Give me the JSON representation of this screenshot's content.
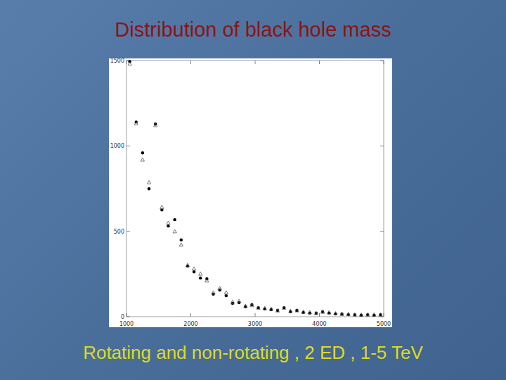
{
  "chart_data": {
    "type": "scatter",
    "title": "Distribution of black hole mass",
    "subtitle": "Rotating and non-rotating , 2 ED , 1-5 TeV",
    "x": [
      1050,
      1150,
      1250,
      1350,
      1450,
      1550,
      1650,
      1750,
      1850,
      1950,
      2050,
      2150,
      2250,
      2350,
      2450,
      2550,
      2650,
      2750,
      2850,
      2950,
      3050,
      3150,
      3250,
      3350,
      3450,
      3550,
      3650,
      3750,
      3850,
      3950,
      4050,
      4150,
      4250,
      4350,
      4450,
      4550,
      4650,
      4750,
      4850,
      4950
    ],
    "series": [
      {
        "color": "#000000",
        "marker": "circle",
        "values": [
          1494,
          1140,
          959,
          749,
          1128,
          625,
          531,
          568,
          449,
          296,
          263,
          226,
          222,
          132,
          156,
          123,
          78,
          82,
          58,
          70,
          53,
          45,
          41,
          37,
          53,
          29,
          37,
          25,
          21,
          21,
          29,
          21,
          16,
          16,
          12,
          12,
          8,
          12,
          8,
          12
        ]
      },
      {
        "color": "#555555",
        "marker": "triangle",
        "values": [
          1480,
          1130,
          918,
          785,
          1120,
          640,
          548,
          498,
          420,
          300,
          280,
          250,
          210,
          140,
          165,
          140,
          85,
          90,
          62,
          66,
          50,
          48,
          44,
          34,
          50,
          32,
          35,
          27,
          24,
          19,
          27,
          23,
          18,
          14,
          14,
          10,
          10,
          10,
          10,
          10
        ]
      }
    ],
    "xlim": [
      1000,
      5000
    ],
    "ylim": [
      0,
      1500
    ],
    "xticks": [
      1000,
      2000,
      3000,
      4000,
      5000
    ],
    "yticks": [
      0,
      500,
      1000,
      1500
    ],
    "grid": false
  }
}
